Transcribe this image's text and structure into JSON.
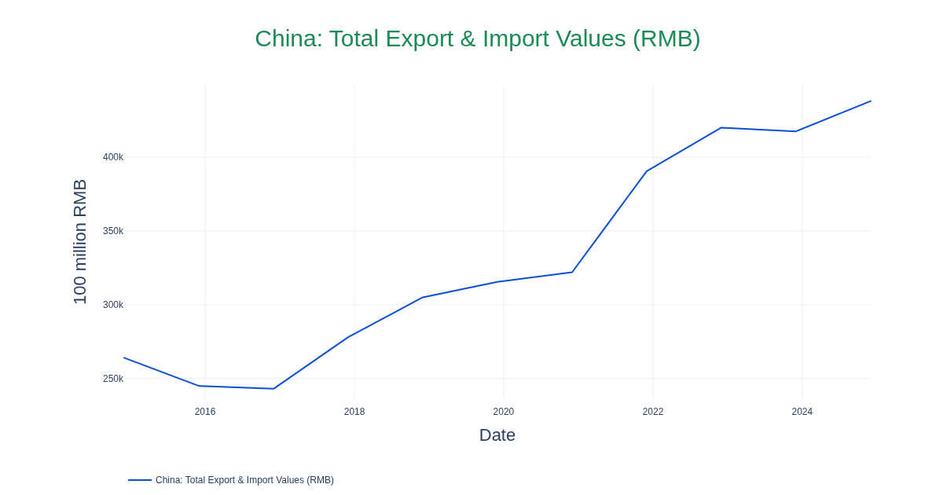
{
  "chart_data": {
    "type": "line",
    "title": "China: Total Export & Import Values (RMB)",
    "xlabel": "Date",
    "ylabel": "100 million RMB",
    "x": [
      "2014-12-01",
      "2015-12-01",
      "2016-12-01",
      "2017-12-01",
      "2018-12-01",
      "2019-12-01",
      "2020-12-01",
      "2021-12-01",
      "2022-12-01",
      "2023-12-01",
      "2024-12-01"
    ],
    "series": [
      {
        "name": "China: Total Export & Import Values (RMB)",
        "color": "#0b4fd8",
        "values": [
          264000,
          245000,
          243000,
          278000,
          305000,
          315500,
          322000,
          390500,
          420000,
          417500,
          438000
        ]
      }
    ],
    "xlim": [
      "2014-12-01",
      "2024-12-01"
    ],
    "xticks": [
      {
        "value": "2016-01-01",
        "label": "2016"
      },
      {
        "value": "2018-01-01",
        "label": "2018"
      },
      {
        "value": "2020-01-01",
        "label": "2020"
      },
      {
        "value": "2022-01-01",
        "label": "2022"
      },
      {
        "value": "2024-01-01",
        "label": "2024"
      }
    ],
    "ylim": [
      236000,
      449000
    ],
    "yticks": [
      {
        "value": 250000,
        "label": "250k"
      },
      {
        "value": 300000,
        "label": "300k"
      },
      {
        "value": 350000,
        "label": "350k"
      },
      {
        "value": 400000,
        "label": "400k"
      }
    ],
    "grid": true,
    "legend": "bottom left",
    "marker": "none",
    "line_style": "solid"
  }
}
